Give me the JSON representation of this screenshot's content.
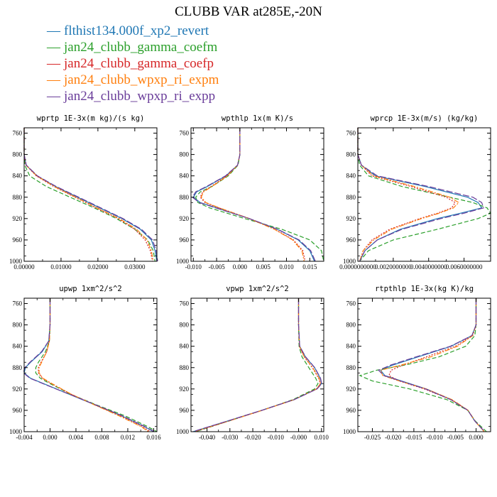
{
  "title": "CLUBB VAR at285E,-20N",
  "legend": [
    {
      "label": "flthist134.000f_xp2_revert",
      "color": "#1f77b4",
      "dash": "none"
    },
    {
      "label": "jan24_clubb_gamma_coefm",
      "color": "#2ca02c",
      "dash": "6,3"
    },
    {
      "label": "jan24_clubb_gamma_coefp",
      "color": "#d62728",
      "dash": "2,2"
    },
    {
      "label": "jan24_clubb_wpxp_ri_expm",
      "color": "#ff7f0e",
      "dash": "7,2,2,2"
    },
    {
      "label": "jan24_clubb_wpxp_ri_expp",
      "color": "#6a3d9a",
      "dash": "9,3"
    }
  ],
  "chart_data": [
    {
      "type": "line",
      "title": "wprtp  1E-3x(m kg)/(s kg)",
      "xlim": [
        0,
        0.036
      ],
      "ylim": [
        1000,
        750
      ],
      "ylabel_ticks": [
        760,
        800,
        840,
        880,
        920,
        960,
        1000
      ],
      "xticks": [
        0.0,
        0.01,
        0.02,
        0.03
      ],
      "xtick_labels": [
        "0.00000",
        "0.01000",
        "0.02000",
        "0.03000"
      ],
      "y": [
        750,
        800,
        820,
        840,
        860,
        880,
        900,
        920,
        940,
        960,
        980,
        1000
      ],
      "series": [
        {
          "values": [
            0,
            0,
            0.0005,
            0.0035,
            0.0085,
            0.0145,
            0.0205,
            0.0265,
            0.0315,
            0.0345,
            0.0355,
            0.036
          ]
        },
        {
          "values": [
            0,
            0,
            0.0002,
            0.0015,
            0.006,
            0.0125,
            0.019,
            0.025,
            0.03,
            0.0335,
            0.035,
            0.0355
          ]
        },
        {
          "values": [
            0,
            0,
            0.0005,
            0.0033,
            0.008,
            0.0138,
            0.0195,
            0.0255,
            0.03,
            0.0328,
            0.0342,
            0.0348
          ]
        },
        {
          "values": [
            0,
            0,
            0.0005,
            0.0034,
            0.0082,
            0.014,
            0.0198,
            0.0258,
            0.0305,
            0.0333,
            0.0345,
            0.035
          ]
        },
        {
          "values": [
            0,
            0,
            0.0006,
            0.0036,
            0.0087,
            0.0148,
            0.0208,
            0.0268,
            0.0318,
            0.0348,
            0.0358,
            0.0362
          ]
        }
      ]
    },
    {
      "type": "line",
      "title": "wpthlp  1x(m K)/s",
      "xlim": [
        -0.0105,
        0.018
      ],
      "ylim": [
        1000,
        750
      ],
      "ylabel_ticks": [
        760,
        800,
        840,
        880,
        920,
        960,
        1000
      ],
      "xticks": [
        -0.01,
        -0.005,
        0.0,
        0.005,
        0.01,
        0.015
      ],
      "xtick_labels": [
        "-0.010",
        "-0.005",
        "0.000",
        "0.005",
        "0.010",
        "0.015"
      ],
      "y": [
        750,
        800,
        820,
        840,
        860,
        870,
        880,
        890,
        900,
        920,
        940,
        960,
        980,
        1000
      ],
      "series": [
        {
          "values": [
            0,
            0,
            -0.0005,
            -0.003,
            -0.007,
            -0.0093,
            -0.01,
            -0.0085,
            -0.005,
            0.002,
            0.008,
            0.0125,
            0.015,
            0.016
          ]
        },
        {
          "values": [
            0,
            0,
            -0.0004,
            -0.0025,
            -0.006,
            -0.0085,
            -0.0095,
            -0.009,
            -0.0065,
            0.001,
            0.009,
            0.015,
            0.0175,
            0.018
          ]
        },
        {
          "values": [
            0,
            0,
            -0.0005,
            -0.0028,
            -0.0062,
            -0.008,
            -0.0085,
            -0.0075,
            -0.0045,
            0.002,
            0.0075,
            0.0115,
            0.0135,
            0.014
          ]
        },
        {
          "values": [
            0,
            0,
            -0.0005,
            -0.0027,
            -0.006,
            -0.0078,
            -0.0083,
            -0.0073,
            -0.0044,
            0.002,
            0.0074,
            0.0113,
            0.0133,
            0.0138
          ]
        },
        {
          "values": [
            0,
            0,
            -0.0005,
            -0.0031,
            -0.0072,
            -0.0095,
            -0.0102,
            -0.0087,
            -0.0052,
            0.002,
            0.0081,
            0.0127,
            0.0152,
            0.0162
          ]
        }
      ]
    },
    {
      "type": "line",
      "title": "wprcp  1E-3x(m/s) (kg/kg)",
      "xlim": [
        0,
        0.0075
      ],
      "ylim": [
        1000,
        750
      ],
      "ylabel_ticks": [
        760,
        800,
        840,
        880,
        920,
        960,
        1000
      ],
      "xticks": [
        0.0,
        0.002,
        0.004,
        0.006
      ],
      "xtick_labels": [
        "0.0000000000",
        "0.0020000000",
        "0.0040000000",
        "0.0060000000"
      ],
      "y": [
        750,
        800,
        820,
        840,
        860,
        880,
        890,
        900,
        910,
        920,
        940,
        960,
        980,
        1000
      ],
      "series": [
        {
          "values": [
            0,
            0,
            0.0002,
            0.001,
            0.0038,
            0.0062,
            0.0068,
            0.007,
            0.0058,
            0.0045,
            0.0024,
            0.0011,
            0.0004,
            0.0001
          ]
        },
        {
          "values": [
            0,
            0,
            0.0001,
            0.0006,
            0.0025,
            0.0052,
            0.0065,
            0.0073,
            0.0075,
            0.0068,
            0.0045,
            0.002,
            0.0006,
            0.0001
          ]
        },
        {
          "values": [
            0,
            0,
            0.0002,
            0.0008,
            0.003,
            0.005,
            0.0055,
            0.0053,
            0.0045,
            0.0035,
            0.0018,
            0.0008,
            0.0003,
            0.0001
          ]
        },
        {
          "values": [
            0,
            0,
            0.0002,
            0.0009,
            0.0032,
            0.0052,
            0.0057,
            0.0054,
            0.0046,
            0.0036,
            0.0019,
            0.0009,
            0.0003,
            0.0001
          ]
        },
        {
          "values": [
            0,
            0,
            0.0002,
            0.0011,
            0.004,
            0.0065,
            0.007,
            0.0071,
            0.006,
            0.0047,
            0.0025,
            0.0011,
            0.0004,
            0.0001
          ]
        }
      ]
    },
    {
      "type": "line",
      "title": "upwp  1xm^2/s^2",
      "xlim": [
        -0.004,
        0.0165
      ],
      "ylim": [
        1000,
        750
      ],
      "ylabel_ticks": [
        760,
        800,
        840,
        880,
        920,
        960,
        1000
      ],
      "xticks": [
        -0.004,
        0.0,
        0.004,
        0.008,
        0.012,
        0.016
      ],
      "xtick_labels": [
        "-0.004",
        "0.000",
        "0.004",
        "0.008",
        "0.012",
        "0.016"
      ],
      "y": [
        750,
        800,
        830,
        850,
        870,
        880,
        890,
        900,
        910,
        930,
        950,
        970,
        990,
        1000
      ],
      "series": [
        {
          "values": [
            0,
            0,
            -0.0002,
            -0.0012,
            -0.003,
            -0.0038,
            -0.004,
            -0.003,
            -0.001,
            0.003,
            0.007,
            0.011,
            0.0145,
            0.016
          ]
        },
        {
          "values": [
            0,
            0,
            -0.0001,
            -0.0007,
            -0.0018,
            -0.0022,
            -0.0022,
            -0.0015,
            0.0,
            0.0032,
            0.0072,
            0.0115,
            0.015,
            0.0165
          ]
        },
        {
          "values": [
            0,
            0,
            -0.0001,
            -0.0005,
            -0.0014,
            -0.0018,
            -0.0018,
            -0.0012,
            0.0002,
            0.0033,
            0.007,
            0.0108,
            0.0142,
            0.0155
          ]
        },
        {
          "values": [
            0,
            0,
            -0.0001,
            -0.0005,
            -0.0013,
            -0.0017,
            -0.0017,
            -0.0011,
            0.0003,
            0.0033,
            0.0069,
            0.0106,
            0.014,
            0.0152
          ]
        },
        {
          "values": [
            0,
            0,
            -0.0002,
            -0.0013,
            -0.0031,
            -0.0039,
            -0.0041,
            -0.0031,
            -0.0011,
            0.003,
            0.0071,
            0.0111,
            0.0146,
            0.0161
          ]
        }
      ]
    },
    {
      "type": "line",
      "title": "vpwp  1xm^2/s^2",
      "xlim": [
        -0.047,
        0.011
      ],
      "ylim": [
        1000,
        750
      ],
      "ylabel_ticks": [
        760,
        800,
        840,
        880,
        920,
        960,
        1000
      ],
      "xticks": [
        -0.04,
        -0.03,
        -0.02,
        -0.01,
        0.0,
        0.01
      ],
      "xtick_labels": [
        "-0.040",
        "-0.030",
        "-0.020",
        "-0.010",
        "-0.000",
        "0.010"
      ],
      "y": [
        750,
        800,
        840,
        860,
        880,
        900,
        910,
        920,
        940,
        960,
        980,
        1000
      ],
      "series": [
        {
          "values": [
            0,
            0,
            0.0005,
            0.003,
            0.007,
            0.0095,
            0.01,
            0.008,
            -0.002,
            -0.016,
            -0.031,
            -0.046
          ]
        },
        {
          "values": [
            0,
            0,
            0.0002,
            0.0015,
            0.0045,
            0.0075,
            0.0085,
            0.007,
            -0.0025,
            -0.016,
            -0.0305,
            -0.045
          ]
        },
        {
          "values": [
            0,
            0,
            0.0004,
            0.0025,
            0.006,
            0.0088,
            0.0095,
            0.0078,
            -0.002,
            -0.0158,
            -0.0305,
            -0.0455
          ]
        },
        {
          "values": [
            0,
            0,
            0.0004,
            0.0025,
            0.0062,
            0.009,
            0.0096,
            0.0079,
            -0.002,
            -0.0159,
            -0.0306,
            -0.0456
          ]
        },
        {
          "values": [
            0,
            0,
            0.0005,
            0.0031,
            0.0071,
            0.0096,
            0.0101,
            0.0081,
            -0.002,
            -0.0161,
            -0.0311,
            -0.0462
          ]
        }
      ]
    },
    {
      "type": "line",
      "title": "rtpthlp  1E-3x(kg K)/kg",
      "xlim": [
        -0.0285,
        0.0035
      ],
      "ylim": [
        1000,
        750
      ],
      "ylabel_ticks": [
        760,
        800,
        840,
        880,
        920,
        960,
        1000
      ],
      "xticks": [
        -0.025,
        -0.02,
        -0.015,
        -0.01,
        -0.005,
        0.0
      ],
      "xtick_labels": [
        "-0.025",
        "-0.020",
        "-0.015",
        "-0.010",
        "-0.005",
        "0.000"
      ],
      "y": [
        750,
        800,
        820,
        840,
        860,
        875,
        885,
        895,
        905,
        920,
        940,
        960,
        980,
        1000
      ],
      "series": [
        {
          "values": [
            0,
            0,
            -0.001,
            -0.006,
            -0.014,
            -0.02,
            -0.023,
            -0.022,
            -0.018,
            -0.012,
            -0.006,
            -0.002,
            -0.0003,
            0.002
          ]
        },
        {
          "values": [
            0,
            0,
            -0.0003,
            -0.0025,
            -0.009,
            -0.017,
            -0.024,
            -0.028,
            -0.025,
            -0.016,
            -0.007,
            -0.002,
            -0.0002,
            0.0025
          ]
        },
        {
          "values": [
            0,
            0,
            -0.0008,
            -0.005,
            -0.012,
            -0.0175,
            -0.0205,
            -0.021,
            -0.0185,
            -0.0125,
            -0.006,
            -0.002,
            -0.0003,
            0.002
          ]
        },
        {
          "values": [
            0,
            0,
            -0.0008,
            -0.0045,
            -0.011,
            -0.018,
            -0.023,
            -0.0225,
            -0.0185,
            -0.012,
            -0.0058,
            -0.0019,
            -0.0003,
            0.002
          ]
        },
        {
          "values": [
            0,
            0,
            -0.001,
            -0.0062,
            -0.0145,
            -0.0205,
            -0.0235,
            -0.0222,
            -0.0182,
            -0.0122,
            -0.0061,
            -0.002,
            -0.0003,
            0.0021
          ]
        }
      ]
    }
  ]
}
